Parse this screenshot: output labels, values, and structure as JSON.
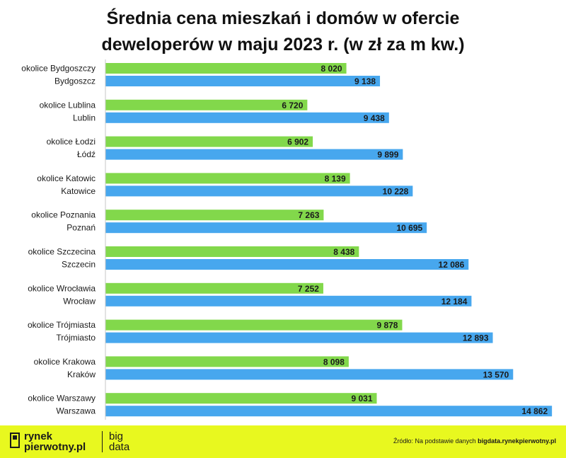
{
  "title_lines": [
    "Średnia cena mieszkań i domów w ofercie",
    "deweloperów w maju 2023 r. (w zł za m kw.)"
  ],
  "colors": {
    "green": "#82d84b",
    "blue": "#47a7ee",
    "footer": "#e8f81f"
  },
  "chart_data": {
    "type": "bar",
    "orientation": "horizontal",
    "title": "Średnia cena mieszkań i domów w ofercie deweloperów w maju 2023 r. (w zł za m kw.)",
    "xlim": [
      0,
      15000
    ],
    "grid": false,
    "groups": [
      {
        "bars": [
          {
            "label": "okolice Bydgoszczy",
            "value": 8020,
            "value_label": "8 020",
            "color": "green"
          },
          {
            "label": "Bydgoszcz",
            "value": 9138,
            "value_label": "9 138",
            "color": "blue"
          }
        ]
      },
      {
        "bars": [
          {
            "label": "okolice Lublina",
            "value": 6720,
            "value_label": "6 720",
            "color": "green"
          },
          {
            "label": "Lublin",
            "value": 9438,
            "value_label": "9 438",
            "color": "blue"
          }
        ]
      },
      {
        "bars": [
          {
            "label": "okolice Łodzi",
            "value": 6902,
            "value_label": "6 902",
            "color": "green"
          },
          {
            "label": "Łódź",
            "value": 9899,
            "value_label": "9 899",
            "color": "blue"
          }
        ]
      },
      {
        "bars": [
          {
            "label": "okolice Katowic",
            "value": 8139,
            "value_label": "8 139",
            "color": "green"
          },
          {
            "label": "Katowice",
            "value": 10228,
            "value_label": "10 228",
            "color": "blue"
          }
        ]
      },
      {
        "bars": [
          {
            "label": "okolice Poznania",
            "value": 7263,
            "value_label": "7 263",
            "color": "green"
          },
          {
            "label": "Poznań",
            "value": 10695,
            "value_label": "10 695",
            "color": "blue"
          }
        ]
      },
      {
        "bars": [
          {
            "label": "okolice Szczecina",
            "value": 8438,
            "value_label": "8 438",
            "color": "green"
          },
          {
            "label": "Szczecin",
            "value": 12086,
            "value_label": "12 086",
            "color": "blue"
          }
        ]
      },
      {
        "bars": [
          {
            "label": "okolice Wrocławia",
            "value": 7252,
            "value_label": "7 252",
            "color": "green"
          },
          {
            "label": "Wrocław",
            "value": 12184,
            "value_label": "12 184",
            "color": "blue"
          }
        ]
      },
      {
        "bars": [
          {
            "label": "okolice Trójmiasta",
            "value": 9878,
            "value_label": "9 878",
            "color": "green"
          },
          {
            "label": "Trójmiasto",
            "value": 12893,
            "value_label": "12 893",
            "color": "blue"
          }
        ]
      },
      {
        "bars": [
          {
            "label": "okolice Krakowa",
            "value": 8098,
            "value_label": "8 098",
            "color": "green"
          },
          {
            "label": "Kraków",
            "value": 13570,
            "value_label": "13 570",
            "color": "blue"
          }
        ]
      },
      {
        "bars": [
          {
            "label": "okolice Warszawy",
            "value": 9031,
            "value_label": "9 031",
            "color": "green"
          },
          {
            "label": "Warszawa",
            "value": 14862,
            "value_label": "14 862",
            "color": "blue"
          }
        ]
      }
    ]
  },
  "footer": {
    "logo_line1": "rynek",
    "logo_line2": "pierwotny.pl",
    "logo_right_line1": "big",
    "logo_right_line2": "data",
    "source_prefix": "Źródło: Na podstawie danych",
    "source_link": "bigdata.rynekpierwotny.pl"
  }
}
